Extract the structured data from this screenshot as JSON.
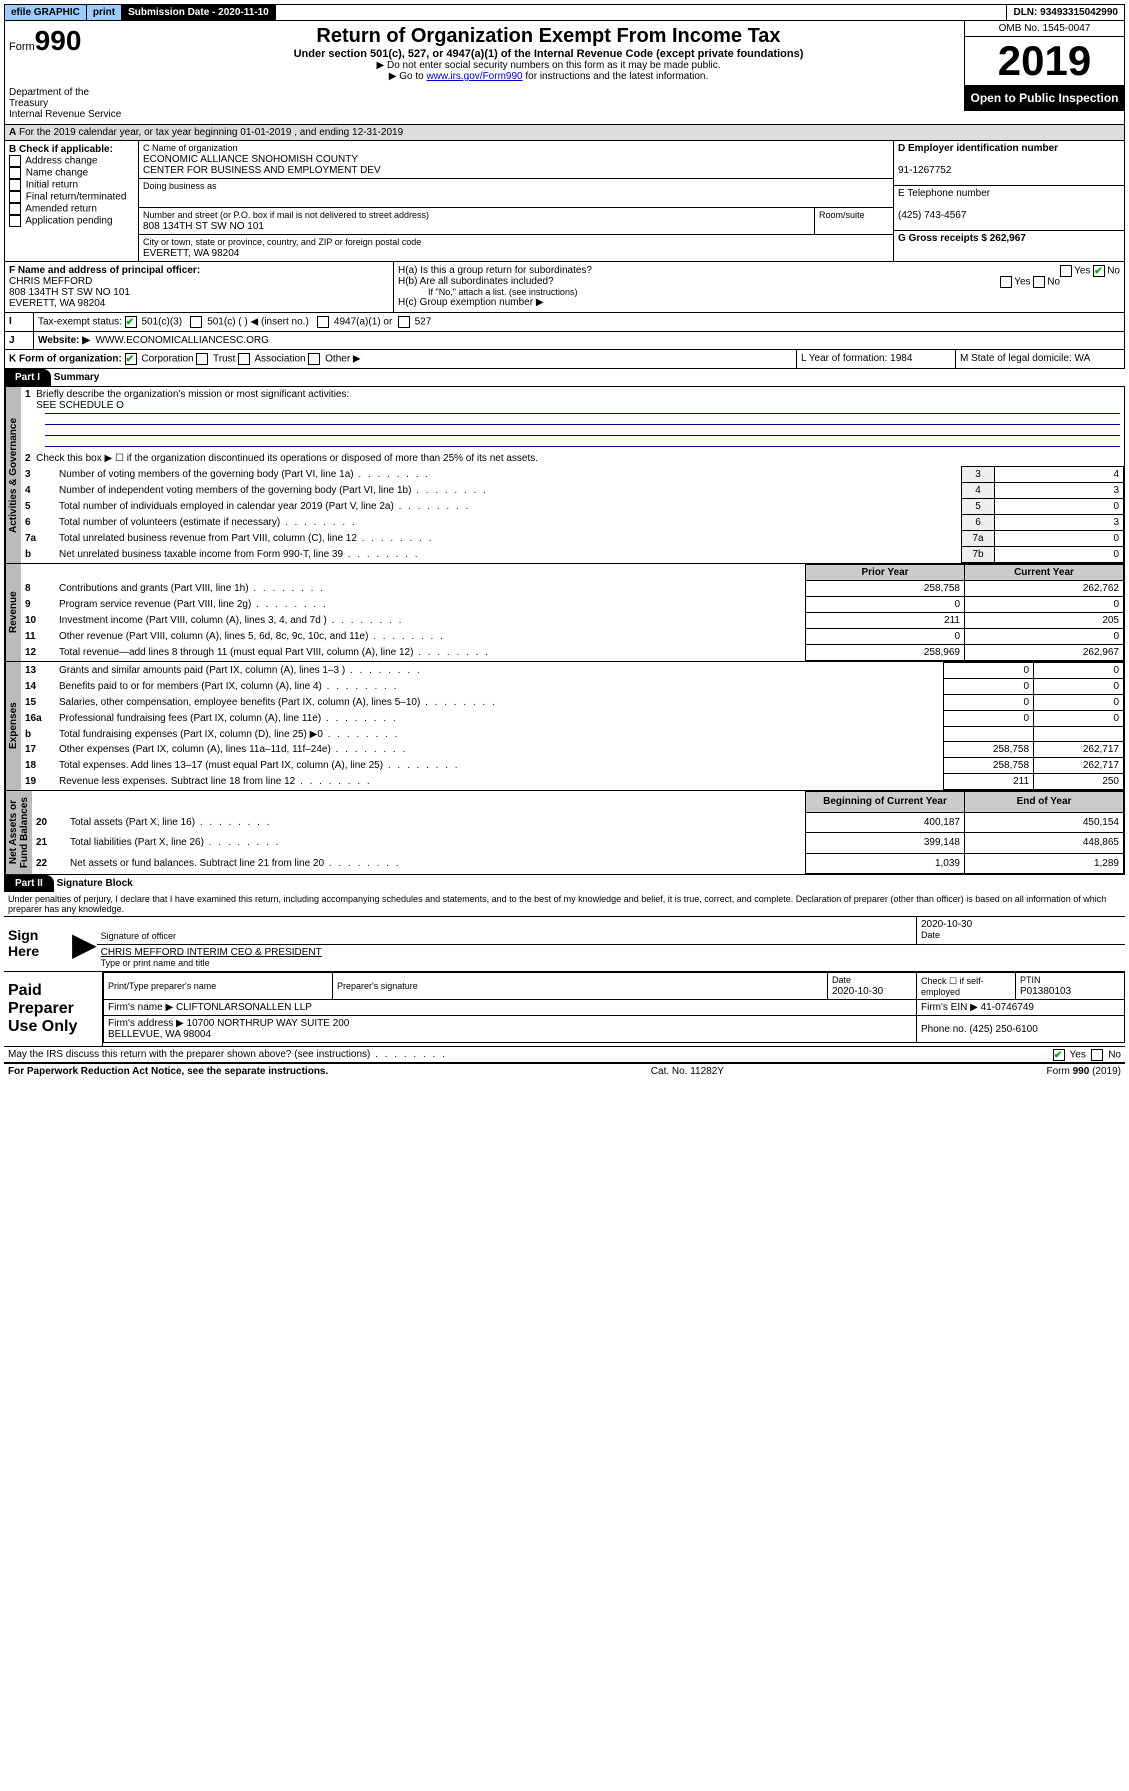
{
  "topbar": {
    "efile": "efile GRAPHIC",
    "print": "print",
    "subdate_lbl": "Submission Date - 2020-11-10",
    "dln": "DLN: 93493315042990"
  },
  "header": {
    "form_label": "Form",
    "form_no": "990",
    "dept": "Department of the Treasury\nInternal Revenue Service",
    "title": "Return of Organization Exempt From Income Tax",
    "sub1": "Under section 501(c), 527, or 4947(a)(1) of the Internal Revenue Code (except private foundations)",
    "sub2": "▶ Do not enter social security numbers on this form as it may be made public.",
    "sub3_pre": "▶ Go to ",
    "sub3_link": "www.irs.gov/Form990",
    "sub3_post": " for instructions and the latest information.",
    "omb": "OMB No. 1545-0047",
    "year": "2019",
    "public": "Open to Public Inspection"
  },
  "secA": {
    "text": "For the 2019 calendar year, or tax year beginning 01-01-2019    , and ending 12-31-2019"
  },
  "boxB": {
    "hdr": "B Check if applicable:",
    "items": [
      "Address change",
      "Name change",
      "Initial return",
      "Final return/terminated",
      "Amended return",
      "Application pending"
    ]
  },
  "boxC": {
    "name_lbl": "C Name of organization",
    "name": "ECONOMIC ALLIANCE SNOHOMISH COUNTY\nCENTER FOR BUSINESS AND EMPLOYMENT DEV",
    "dba_lbl": "Doing business as",
    "dba": "",
    "addr_lbl": "Number and street (or P.O. box if mail is not delivered to street address)",
    "room_lbl": "Room/suite",
    "addr": "808 134TH ST SW NO 101",
    "city_lbl": "City or town, state or province, country, and ZIP or foreign postal code",
    "city": "EVERETT, WA  98204"
  },
  "boxD": {
    "lbl": "D Employer identification number",
    "val": "91-1267752"
  },
  "boxE": {
    "lbl": "E Telephone number",
    "val": "(425) 743-4567"
  },
  "boxG": {
    "lbl": "G Gross receipts $ 262,967"
  },
  "boxF": {
    "lbl": "F  Name and address of principal officer:",
    "val": "CHRIS MEFFORD\n808 134TH ST SW NO 101\nEVERETT, WA  98204"
  },
  "boxH": {
    "a": "H(a)  Is this a group return for subordinates?",
    "b": "H(b)  Are all subordinates included?",
    "note": "If \"No,\" attach a list. (see instructions)",
    "c": "H(c)  Group exemption number ▶",
    "yes": "Yes",
    "no": "No"
  },
  "boxI": {
    "lbl": "Tax-exempt status:",
    "o1": "501(c)(3)",
    "o2": "501(c) (   ) ◀ (insert no.)",
    "o3": "4947(a)(1) or",
    "o4": "527"
  },
  "boxJ": {
    "lbl": "Website: ▶",
    "val": "WWW.ECONOMICALLIANCESC.ORG"
  },
  "boxK": {
    "lbl": "K Form of organization:",
    "c": "Corporation",
    "t": "Trust",
    "a": "Association",
    "o": "Other ▶"
  },
  "boxL": {
    "lbl": "L Year of formation: 1984"
  },
  "boxM": {
    "lbl": "M State of legal domicile: WA"
  },
  "part1": {
    "hdr": "Part I",
    "title": "Summary"
  },
  "summary": {
    "l1": "Briefly describe the organization's mission or most significant activities:",
    "l1v": "SEE SCHEDULE O",
    "l2": "Check this box ▶ ☐  if the organization discontinued its operations or disposed of more than 25% of its net assets.",
    "rows_ag": [
      {
        "n": "3",
        "t": "Number of voting members of the governing body (Part VI, line 1a)",
        "box": "3",
        "v": "4"
      },
      {
        "n": "4",
        "t": "Number of independent voting members of the governing body (Part VI, line 1b)",
        "box": "4",
        "v": "3"
      },
      {
        "n": "5",
        "t": "Total number of individuals employed in calendar year 2019 (Part V, line 2a)",
        "box": "5",
        "v": "0"
      },
      {
        "n": "6",
        "t": "Total number of volunteers (estimate if necessary)",
        "box": "6",
        "v": "3"
      },
      {
        "n": "7a",
        "t": "Total unrelated business revenue from Part VIII, column (C), line 12",
        "box": "7a",
        "v": "0"
      },
      {
        "n": "b",
        "t": "Net unrelated business taxable income from Form 990-T, line 39",
        "box": "7b",
        "v": "0"
      }
    ],
    "py": "Prior Year",
    "cy": "Current Year",
    "rev": [
      {
        "n": "8",
        "t": "Contributions and grants (Part VIII, line 1h)",
        "p": "258,758",
        "c": "262,762"
      },
      {
        "n": "9",
        "t": "Program service revenue (Part VIII, line 2g)",
        "p": "0",
        "c": "0"
      },
      {
        "n": "10",
        "t": "Investment income (Part VIII, column (A), lines 3, 4, and 7d )",
        "p": "211",
        "c": "205"
      },
      {
        "n": "11",
        "t": "Other revenue (Part VIII, column (A), lines 5, 6d, 8c, 9c, 10c, and 11e)",
        "p": "0",
        "c": "0"
      },
      {
        "n": "12",
        "t": "Total revenue—add lines 8 through 11 (must equal Part VIII, column (A), line 12)",
        "p": "258,969",
        "c": "262,967"
      }
    ],
    "exp": [
      {
        "n": "13",
        "t": "Grants and similar amounts paid (Part IX, column (A), lines 1–3 )",
        "p": "0",
        "c": "0"
      },
      {
        "n": "14",
        "t": "Benefits paid to or for members (Part IX, column (A), line 4)",
        "p": "0",
        "c": "0"
      },
      {
        "n": "15",
        "t": "Salaries, other compensation, employee benefits (Part IX, column (A), lines 5–10)",
        "p": "0",
        "c": "0"
      },
      {
        "n": "16a",
        "t": "Professional fundraising fees (Part IX, column (A), line 11e)",
        "p": "0",
        "c": "0"
      },
      {
        "n": "b",
        "t": "Total fundraising expenses (Part IX, column (D), line 25) ▶0",
        "p": "",
        "c": "",
        "shade": true
      },
      {
        "n": "17",
        "t": "Other expenses (Part IX, column (A), lines 11a–11d, 11f–24e)",
        "p": "258,758",
        "c": "262,717"
      },
      {
        "n": "18",
        "t": "Total expenses. Add lines 13–17 (must equal Part IX, column (A), line 25)",
        "p": "258,758",
        "c": "262,717"
      },
      {
        "n": "19",
        "t": "Revenue less expenses. Subtract line 18 from line 12",
        "p": "211",
        "c": "250"
      }
    ],
    "by": "Beginning of Current Year",
    "ey": "End of Year",
    "net": [
      {
        "n": "20",
        "t": "Total assets (Part X, line 16)",
        "p": "400,187",
        "c": "450,154"
      },
      {
        "n": "21",
        "t": "Total liabilities (Part X, line 26)",
        "p": "399,148",
        "c": "448,865"
      },
      {
        "n": "22",
        "t": "Net assets or fund balances. Subtract line 21 from line 20",
        "p": "1,039",
        "c": "1,289"
      }
    ],
    "vtabs": {
      "ag": "Activities & Governance",
      "rev": "Revenue",
      "exp": "Expenses",
      "net": "Net Assets or\nFund Balances"
    }
  },
  "part2": {
    "hdr": "Part II",
    "title": "Signature Block",
    "decl": "Under penalties of perjury, I declare that I have examined this return, including accompanying schedules and statements, and to the best of my knowledge and belief, it is true, correct, and complete. Declaration of preparer (other than officer) is based on all information of which preparer has any knowledge."
  },
  "sign": {
    "here": "Sign Here",
    "sig_lbl": "Signature of officer",
    "date_lbl": "Date",
    "date": "2020-10-30",
    "name": "CHRIS MEFFORD  INTERIM CEO & PRESIDENT",
    "name_lbl": "Type or print name and title"
  },
  "prep": {
    "hdr": "Paid Preparer Use Only",
    "c1": "Print/Type preparer's name",
    "c2": "Preparer's signature",
    "c3": "Date",
    "c3v": "2020-10-30",
    "c4": "Check ☐ if self-employed",
    "c5": "PTIN",
    "c5v": "P01380103",
    "firm_lbl": "Firm's name     ▶",
    "firm": "CLIFTONLARSONALLEN LLP",
    "ein_lbl": "Firm's EIN ▶",
    "ein": "41-0746749",
    "addr_lbl": "Firm's address ▶",
    "addr": "10700 NORTHRUP WAY SUITE 200\nBELLEVUE, WA  98004",
    "ph_lbl": "Phone no.",
    "ph": "(425) 250-6100"
  },
  "discuss": {
    "t": "May the IRS discuss this return with the preparer shown above? (see instructions)",
    "yes": "Yes",
    "no": "No"
  },
  "foot": {
    "l": "For Paperwork Reduction Act Notice, see the separate instructions.",
    "m": "Cat. No. 11282Y",
    "r": "Form 990 (2019)"
  }
}
